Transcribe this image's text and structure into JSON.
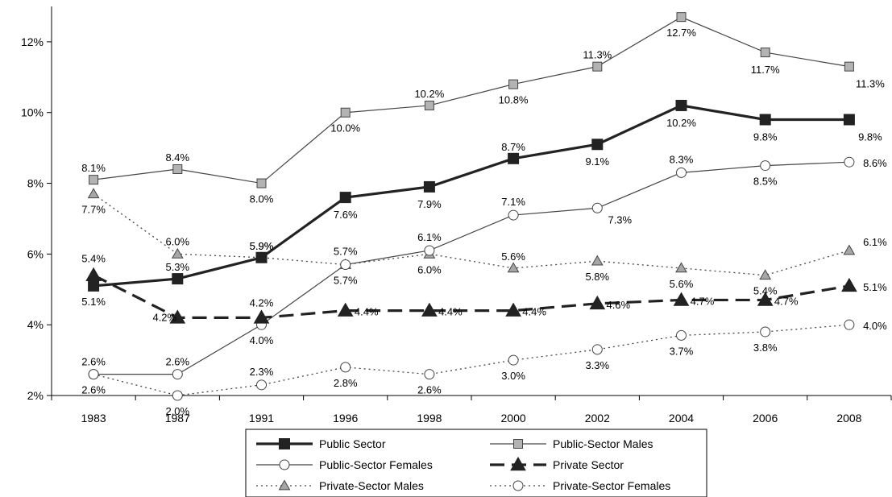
{
  "chart_data": {
    "type": "line",
    "title": "",
    "xlabel": "",
    "ylabel": "",
    "categories": [
      "1983",
      "1987",
      "1991",
      "1996",
      "1998",
      "2000",
      "2002",
      "2004",
      "2006",
      "2008"
    ],
    "ylim": [
      2,
      13
    ],
    "yticks": [
      "2%",
      "4%",
      "6%",
      "8%",
      "10%",
      "12%"
    ],
    "ytick_values": [
      2,
      4,
      6,
      8,
      10,
      12
    ],
    "grid": false,
    "legend_position": "bottom",
    "series": [
      {
        "name": "Public Sector",
        "values": [
          5.1,
          5.3,
          5.9,
          7.6,
          7.9,
          8.7,
          9.1,
          10.2,
          9.8,
          9.8
        ],
        "labels": [
          "5.1%",
          "5.3%",
          "5.9%",
          "7.6%",
          "7.9%",
          "8.7%",
          "9.1%",
          "10.2%",
          "9.8%",
          "9.8%"
        ],
        "color": "#222222",
        "marker": "square",
        "line": "thick-solid"
      },
      {
        "name": "Public-Sector Males",
        "values": [
          8.1,
          8.4,
          8.0,
          10.0,
          10.2,
          10.8,
          11.3,
          12.7,
          11.7,
          11.3
        ],
        "labels": [
          "8.1%",
          "8.4%",
          "8.0%",
          "10.0%",
          "10.2%",
          "10.8%",
          "11.3%",
          "12.7%",
          "11.7%",
          "11.3%"
        ],
        "color": "#444444",
        "marker_fill": "#b3b3b3",
        "marker": "square",
        "line": "thin-solid"
      },
      {
        "name": "Public-Sector Females",
        "values": [
          2.6,
          2.6,
          4.0,
          5.7,
          6.1,
          7.1,
          7.3,
          8.3,
          8.5,
          8.6
        ],
        "labels": [
          "2.6%",
          "2.6%",
          "4.0%",
          "5.7%",
          "6.1%",
          "7.1%",
          "7.3%",
          "8.3%",
          "8.5%",
          "8.6%"
        ],
        "color": "#444444",
        "marker": "circle",
        "line": "thin-solid"
      },
      {
        "name": "Private Sector",
        "values": [
          5.4,
          4.2,
          4.2,
          4.4,
          4.4,
          4.4,
          4.6,
          4.7,
          4.7,
          5.1
        ],
        "labels": [
          "5.4%",
          "4.2%",
          "4.2%",
          "4.4%",
          "4.4%",
          "4.4%",
          "4.6%",
          "4.7%",
          "4.7%",
          "5.1%"
        ],
        "color": "#222222",
        "marker": "triangle",
        "line": "thick-dashed"
      },
      {
        "name": "Private-Sector Males",
        "values": [
          7.7,
          6.0,
          5.9,
          5.7,
          6.0,
          5.6,
          5.8,
          5.6,
          5.4,
          6.1
        ],
        "labels": [
          "7.7%",
          "6.0%",
          "5.9%",
          "5.7%",
          "6.0%",
          "5.6%",
          "5.8%",
          "5.6%",
          "5.4%",
          "6.1%"
        ],
        "color": "#444444",
        "marker_fill": "#a6a6a6",
        "marker": "triangle",
        "line": "dotted"
      },
      {
        "name": "Private-Sector Females",
        "values": [
          2.6,
          2.0,
          2.3,
          2.8,
          2.6,
          3.0,
          3.3,
          3.7,
          3.8,
          4.0
        ],
        "labels": [
          "2.6%",
          "2.0%",
          "2.3%",
          "2.8%",
          "2.6%",
          "3.0%",
          "3.3%",
          "3.7%",
          "3.8%",
          "4.0%"
        ],
        "color": "#444444",
        "marker": "circle",
        "line": "dotted"
      }
    ]
  }
}
